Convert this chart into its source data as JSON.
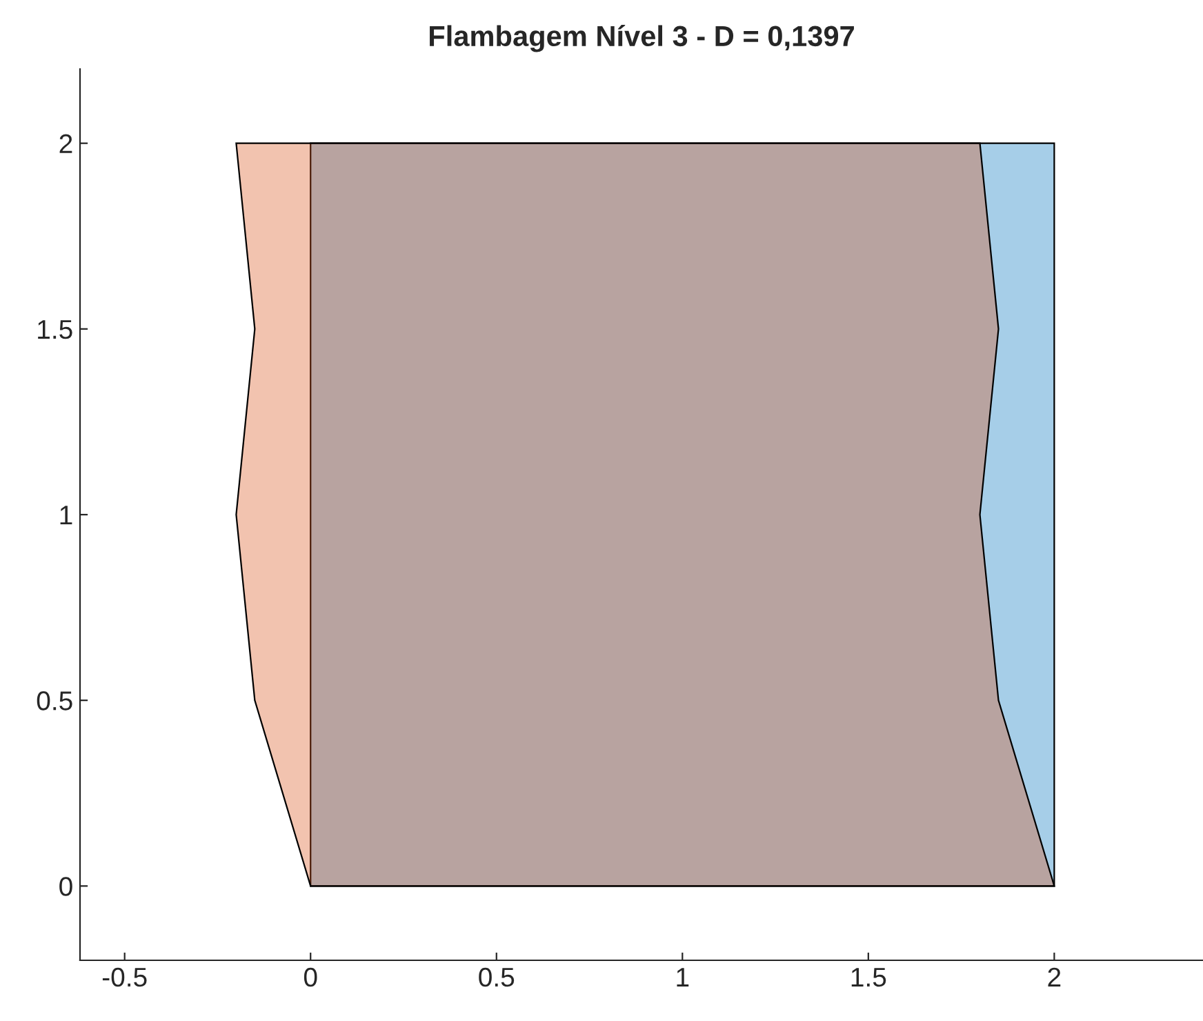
{
  "chart_data": {
    "type": "area",
    "title": "Flambagem Nível 3 - D = 0,1397",
    "series": [
      {
        "color": "#0072bd",
        "x": [
          0,
          2,
          2,
          0
        ],
        "values": [
          0,
          0,
          2,
          2
        ]
      },
      {
        "color": "#d95319",
        "x": [
          0,
          2,
          1.85,
          1.8,
          1.85,
          1.8,
          -0.2,
          -0.15,
          -0.2,
          -0.15
        ],
        "values": [
          0,
          0,
          0.5,
          1,
          1.5,
          2,
          2,
          1.5,
          1,
          0.5
        ]
      }
    ],
    "xlim": [
      -0.62,
      2.4
    ],
    "ylim": [
      -0.2,
      2.2
    ],
    "xticks": [
      -0.5,
      0,
      0.5,
      1,
      1.5,
      2
    ],
    "yticks": [
      0,
      0.5,
      1,
      1.5,
      2
    ],
    "grid": false
  }
}
